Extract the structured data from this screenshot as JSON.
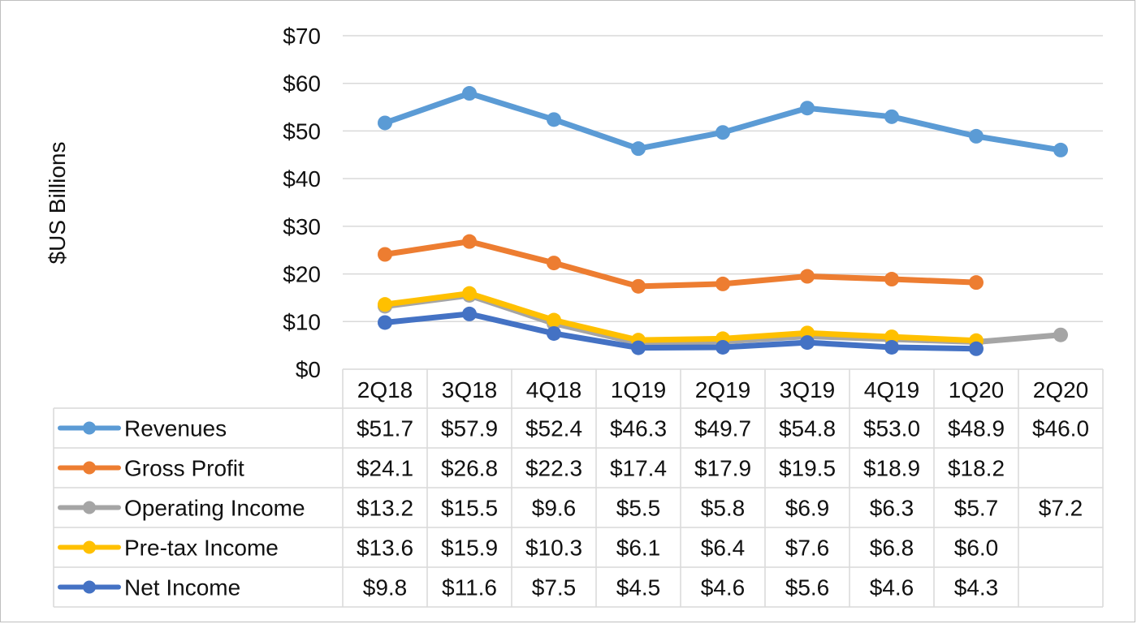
{
  "chart_data": {
    "type": "line",
    "title": "",
    "xlabel": "",
    "ylabel": "$US Billions",
    "ylim": [
      0,
      70
    ],
    "yticks": [
      0,
      10,
      20,
      30,
      40,
      50,
      60,
      70
    ],
    "ytick_labels": [
      "$0",
      "$10",
      "$20",
      "$30",
      "$40",
      "$50",
      "$60",
      "$70"
    ],
    "grid": true,
    "legend": "data-table",
    "categories": [
      "2Q18",
      "3Q18",
      "4Q18",
      "1Q19",
      "2Q19",
      "3Q19",
      "4Q19",
      "1Q20",
      "2Q20"
    ],
    "series": [
      {
        "name": "Revenues",
        "color": "#5B9BD5",
        "values": [
          51.7,
          57.9,
          52.4,
          46.3,
          49.7,
          54.8,
          53.0,
          48.9,
          46.0
        ],
        "labels": [
          "$51.7",
          "$57.9",
          "$52.4",
          "$46.3",
          "$49.7",
          "$54.8",
          "$53.0",
          "$48.9",
          "$46.0"
        ]
      },
      {
        "name": "Gross Profit",
        "color": "#ED7D31",
        "values": [
          24.1,
          26.8,
          22.3,
          17.4,
          17.9,
          19.5,
          18.9,
          18.2,
          null
        ],
        "labels": [
          "$24.1",
          "$26.8",
          "$22.3",
          "$17.4",
          "$17.9",
          "$19.5",
          "$18.9",
          "$18.2",
          ""
        ]
      },
      {
        "name": "Operating Income",
        "color": "#A5A5A5",
        "values": [
          13.2,
          15.5,
          9.6,
          5.5,
          5.8,
          6.9,
          6.3,
          5.7,
          7.2
        ],
        "labels": [
          "$13.2",
          "$15.5",
          "$9.6",
          "$5.5",
          "$5.8",
          "$6.9",
          "$6.3",
          "$5.7",
          "$7.2"
        ]
      },
      {
        "name": "Pre-tax Income",
        "color": "#FFC000",
        "values": [
          13.6,
          15.9,
          10.3,
          6.1,
          6.4,
          7.6,
          6.8,
          6.0,
          null
        ],
        "labels": [
          "$13.6",
          "$15.9",
          "$10.3",
          "$6.1",
          "$6.4",
          "$7.6",
          "$6.8",
          "$6.0",
          ""
        ]
      },
      {
        "name": "Net Income",
        "color": "#4472C4",
        "values": [
          9.8,
          11.6,
          7.5,
          4.5,
          4.6,
          5.6,
          4.6,
          4.3,
          null
        ],
        "labels": [
          "$9.8",
          "$11.6",
          "$7.5",
          "$4.5",
          "$4.6",
          "$5.6",
          "$4.6",
          "$4.3",
          ""
        ]
      }
    ]
  }
}
